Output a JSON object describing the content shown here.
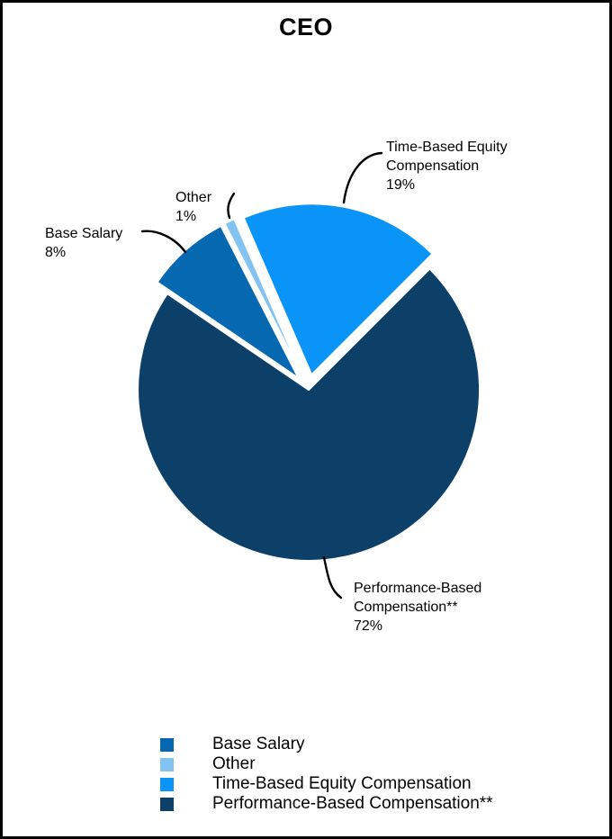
{
  "title": "CEO",
  "chart_data": {
    "type": "pie",
    "title": "CEO",
    "direction": "clockwise",
    "start_angle_deg": 304.2,
    "legend_position": "bottom",
    "slices": [
      {
        "label": "Base Salary",
        "value": 8,
        "color": "#0768B2",
        "exploded": true
      },
      {
        "label": "Other",
        "value": 1,
        "color": "#82C3F2",
        "exploded": true
      },
      {
        "label": "Time-Based Equity Compensation",
        "value": 19,
        "color": "#0B94F7",
        "exploded": true
      },
      {
        "label": "Performance-Based Compensation**",
        "value": 72,
        "color": "#0C4068",
        "exploded": false
      }
    ]
  },
  "callouts": {
    "time_based": "Time-Based Equity\nCompensation\n19%",
    "other": "Other\n1%",
    "base_salary": "Base Salary\n8%",
    "performance": "Performance-Based\nCompensation**\n72%"
  },
  "legend": {
    "items": [
      {
        "label": "Base Salary",
        "color": "#0768B2"
      },
      {
        "label": "Other",
        "color": "#82C3F2"
      },
      {
        "label": "Time-Based Equity Compensation",
        "color": "#0B94F7"
      },
      {
        "label": "Performance-Based Compensation**",
        "color": "#0C4068"
      }
    ]
  },
  "colors": {
    "leader_line": "#000000",
    "slice_border": "#ffffff"
  }
}
